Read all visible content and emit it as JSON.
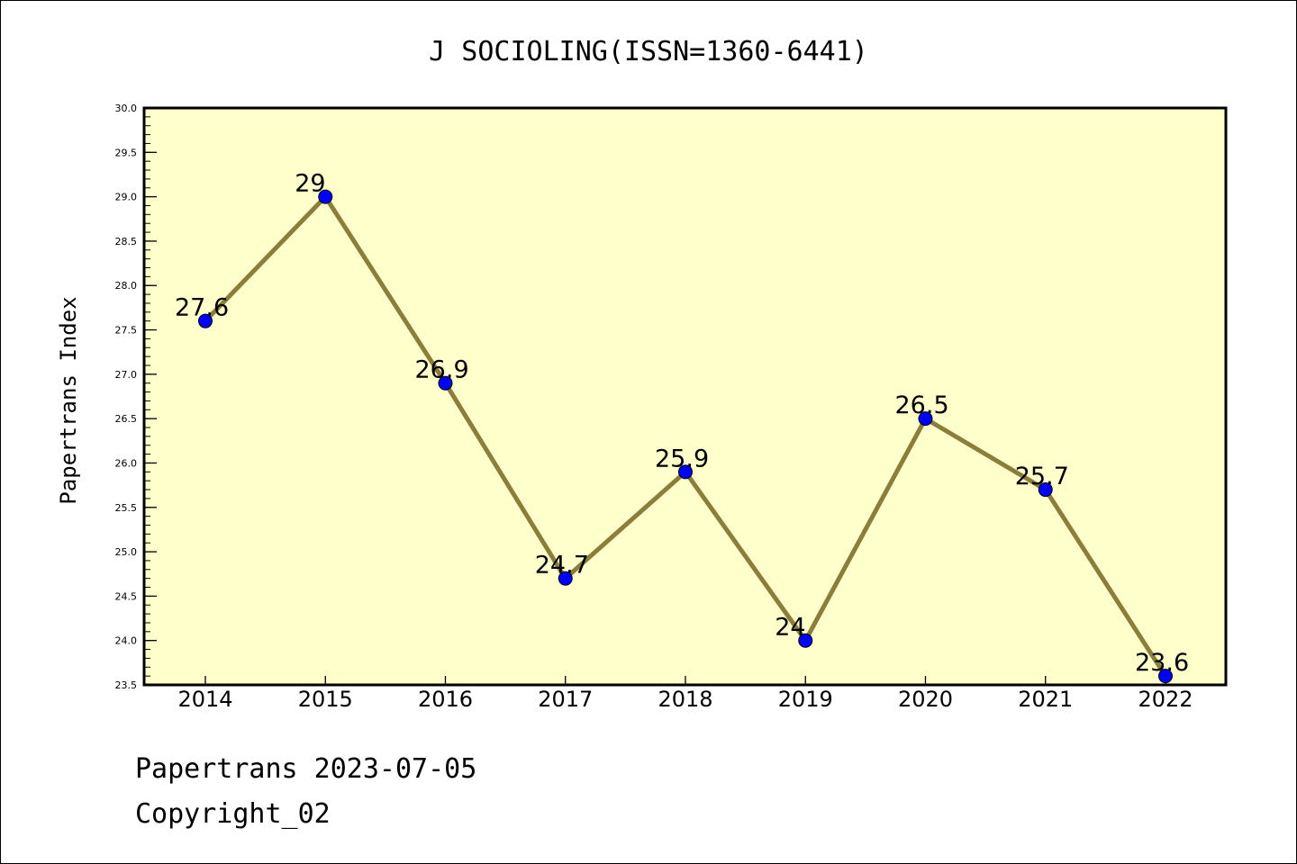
{
  "chart_data": {
    "type": "line",
    "title": "J SOCIOLING(ISSN=1360-6441)",
    "ylabel": "Papertrans Index",
    "xlabel": "",
    "categories": [
      "2014",
      "2015",
      "2016",
      "2017",
      "2018",
      "2019",
      "2020",
      "2021",
      "2022"
    ],
    "values": [
      27.6,
      29,
      26.9,
      24.7,
      25.9,
      24,
      26.5,
      25.7,
      23.6
    ],
    "data_labels": [
      "27.6",
      "29",
      "26.9",
      "24.7",
      "25.9",
      "24",
      "26.5",
      "25.7",
      "23.6"
    ],
    "ylim": [
      23.5,
      30.0
    ],
    "yticks": [
      "23.5",
      "24.0",
      "24.5",
      "25.0",
      "25.5",
      "26.0",
      "26.5",
      "27.0",
      "27.5",
      "28.0",
      "28.5",
      "29.0",
      "29.5",
      "30.0"
    ],
    "grid": false,
    "legend": "none",
    "colors": {
      "plot_background": "#ffffcc",
      "line": "#8b7d3a",
      "marker": "#0000ff"
    }
  },
  "footer": {
    "line1": "Papertrans 2023-07-05",
    "line2": "Copyright_02"
  }
}
